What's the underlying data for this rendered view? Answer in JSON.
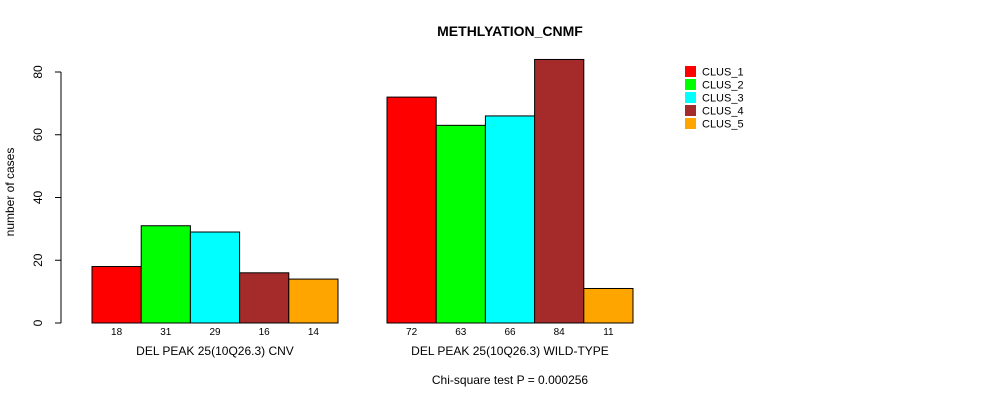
{
  "chart_data": {
    "type": "bar",
    "title": "METHLYATION_CNMF",
    "xlabel": "",
    "ylabel": "number of cases",
    "ylim": [
      0,
      80
    ],
    "yticks": [
      0,
      20,
      40,
      60,
      80
    ],
    "categories": [
      "DEL PEAK 25(10Q26.3) CNV",
      "DEL PEAK 25(10Q26.3) WILD-TYPE"
    ],
    "series": [
      {
        "name": "CLUS_1",
        "color": "#ff0000",
        "values": [
          18,
          72
        ]
      },
      {
        "name": "CLUS_2",
        "color": "#00ff00",
        "values": [
          31,
          63
        ]
      },
      {
        "name": "CLUS_3",
        "color": "#00ffff",
        "values": [
          29,
          66
        ]
      },
      {
        "name": "CLUS_4",
        "color": "#a52a2a",
        "values": [
          16,
          84
        ]
      },
      {
        "name": "CLUS_5",
        "color": "#ffa500",
        "values": [
          14,
          11
        ]
      }
    ],
    "legend": "top-right",
    "grid": false,
    "footer": "Chi-square test P = 0.000256"
  }
}
